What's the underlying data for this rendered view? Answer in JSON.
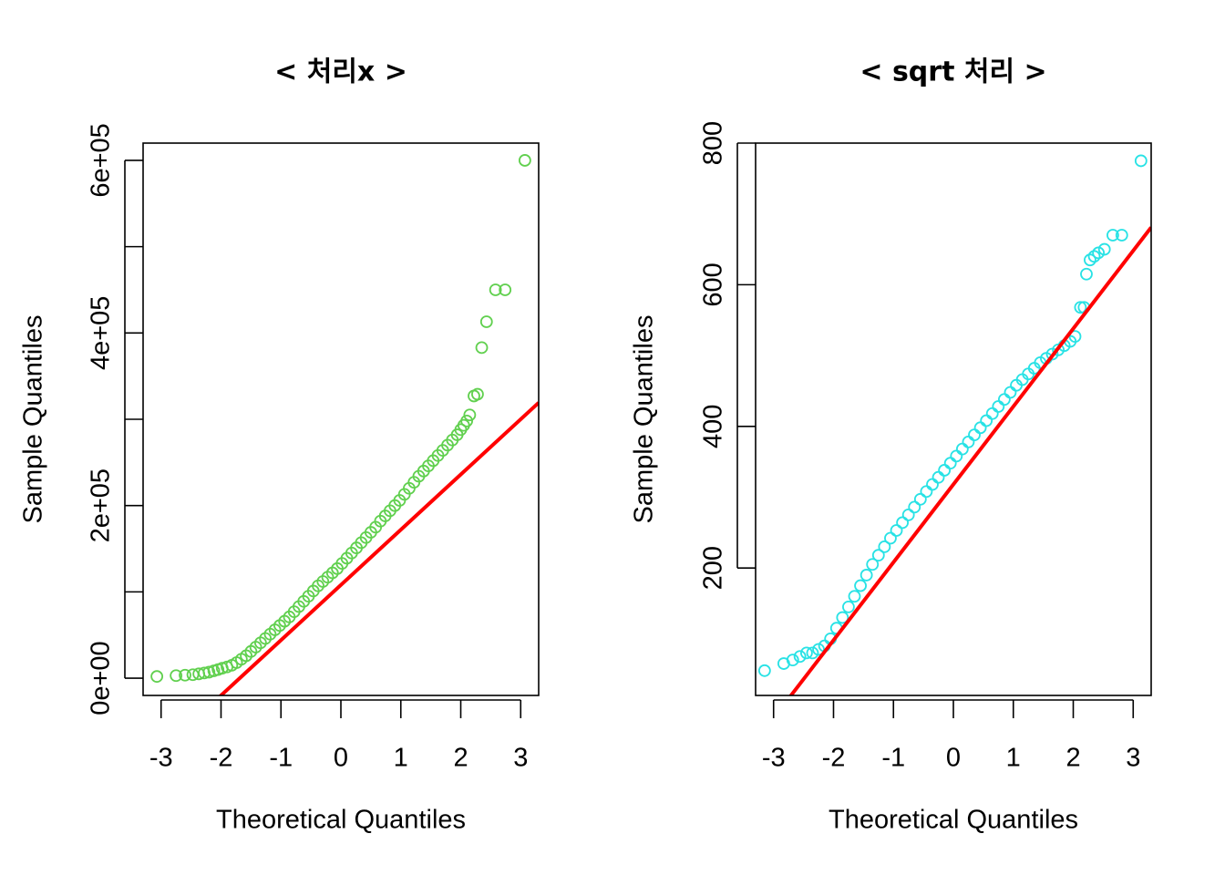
{
  "chart_data": [
    {
      "type": "scatter",
      "title": "< 처리x >",
      "xlabel": "Theoretical Quantiles",
      "ylabel": "Sample Quantiles",
      "xlim": [
        -3.3,
        3.3
      ],
      "ylim": [
        -20000,
        620000
      ],
      "x_ticks": [
        -3,
        -2,
        -1,
        0,
        1,
        2,
        3
      ],
      "x_tick_labels": [
        "-3",
        "-2",
        "-1",
        "0",
        "1",
        "2",
        "3"
      ],
      "y_ticks": [
        0,
        100000,
        200000,
        300000,
        400000,
        500000,
        600000
      ],
      "y_tick_labels": [
        "0e+00",
        "2e+05",
        "4e+05",
        "6e+05"
      ],
      "y_tick_labels_at": [
        0,
        200000,
        400000,
        600000
      ],
      "point_color": "#61D04F",
      "line_color": "#FF0000",
      "qq_line": {
        "slope": 64000,
        "intercept": 108000
      },
      "series": [
        {
          "x": [
            -3.07,
            -2.75,
            -2.6,
            -2.47,
            -2.37,
            -2.28,
            -2.2,
            -2.12,
            -2.05,
            -1.98,
            -1.9,
            -1.82,
            -1.74,
            -1.66,
            -1.58,
            -1.5,
            -1.42,
            -1.34,
            -1.26,
            -1.18,
            -1.1,
            -1.02,
            -0.94,
            -0.86,
            -0.78,
            -0.7,
            -0.62,
            -0.54,
            -0.46,
            -0.38,
            -0.3,
            -0.22,
            -0.14,
            -0.06,
            0.02,
            0.1,
            0.18,
            0.26,
            0.34,
            0.42,
            0.5,
            0.58,
            0.66,
            0.74,
            0.82,
            0.9,
            0.98,
            1.06,
            1.14,
            1.22,
            1.3,
            1.38,
            1.46,
            1.54,
            1.62,
            1.7,
            1.78,
            1.86,
            1.94,
            2.0,
            2.05,
            2.1,
            2.15,
            2.22,
            2.28,
            2.35,
            2.43,
            2.58,
            2.74,
            3.07
          ],
          "y": [
            2000,
            3000,
            3500,
            4000,
            5000,
            6000,
            7000,
            8500,
            10000,
            11500,
            13000,
            15000,
            18000,
            22000,
            26000,
            31000,
            36000,
            41000,
            46000,
            51000,
            56000,
            61000,
            66000,
            71000,
            77000,
            83000,
            89000,
            95000,
            101000,
            107000,
            112000,
            117000,
            122000,
            127000,
            133000,
            139000,
            145000,
            151000,
            157000,
            163000,
            169000,
            175000,
            182000,
            188000,
            194000,
            200000,
            206000,
            213000,
            220000,
            227000,
            234000,
            240000,
            246000,
            252000,
            258000,
            264000,
            270000,
            276000,
            282000,
            288000,
            293000,
            298000,
            305000,
            327000,
            329000,
            383000,
            413000,
            450000,
            450000,
            600000
          ]
        }
      ]
    },
    {
      "type": "scatter",
      "title": "< sqrt 처리 >",
      "xlabel": "Theoretical Quantiles",
      "ylabel": "Sample Quantiles",
      "xlim": [
        -3.3,
        3.3
      ],
      "ylim": [
        20,
        800
      ],
      "x_ticks": [
        -3,
        -2,
        -1,
        0,
        1,
        2,
        3
      ],
      "x_tick_labels": [
        "-3",
        "-2",
        "-1",
        "0",
        "1",
        "2",
        "3"
      ],
      "y_ticks": [
        200,
        400,
        600,
        800
      ],
      "y_tick_labels": [
        "200",
        "400",
        "600",
        "800"
      ],
      "y_tick_labels_at": [
        200,
        400,
        600,
        800
      ],
      "point_color": "#28E2E5",
      "line_color": "#FF0000",
      "qq_line": {
        "slope": 110,
        "intercept": 318
      },
      "series": [
        {
          "x": [
            -3.15,
            -2.83,
            -2.68,
            -2.56,
            -2.45,
            -2.35,
            -2.25,
            -2.15,
            -2.05,
            -1.95,
            -1.85,
            -1.75,
            -1.65,
            -1.55,
            -1.45,
            -1.35,
            -1.25,
            -1.15,
            -1.05,
            -0.95,
            -0.85,
            -0.75,
            -0.65,
            -0.55,
            -0.45,
            -0.35,
            -0.25,
            -0.15,
            -0.05,
            0.05,
            0.15,
            0.25,
            0.35,
            0.45,
            0.55,
            0.65,
            0.75,
            0.85,
            0.95,
            1.05,
            1.15,
            1.25,
            1.35,
            1.45,
            1.55,
            1.65,
            1.75,
            1.85,
            1.95,
            2.03,
            2.12,
            2.18,
            2.22,
            2.28,
            2.35,
            2.42,
            2.52,
            2.66,
            2.81,
            3.13
          ],
          "y": [
            55,
            65,
            70,
            75,
            80,
            80,
            85,
            90,
            100,
            115,
            130,
            145,
            160,
            175,
            190,
            205,
            218,
            230,
            242,
            253,
            264,
            275,
            286,
            297,
            308,
            318,
            328,
            338,
            348,
            358,
            368,
            378,
            388,
            398,
            408,
            418,
            428,
            438,
            448,
            458,
            466,
            474,
            482,
            490,
            496,
            502,
            508,
            514,
            520,
            527,
            568,
            568,
            615,
            635,
            640,
            645,
            650,
            670,
            670,
            775
          ]
        }
      ]
    }
  ]
}
